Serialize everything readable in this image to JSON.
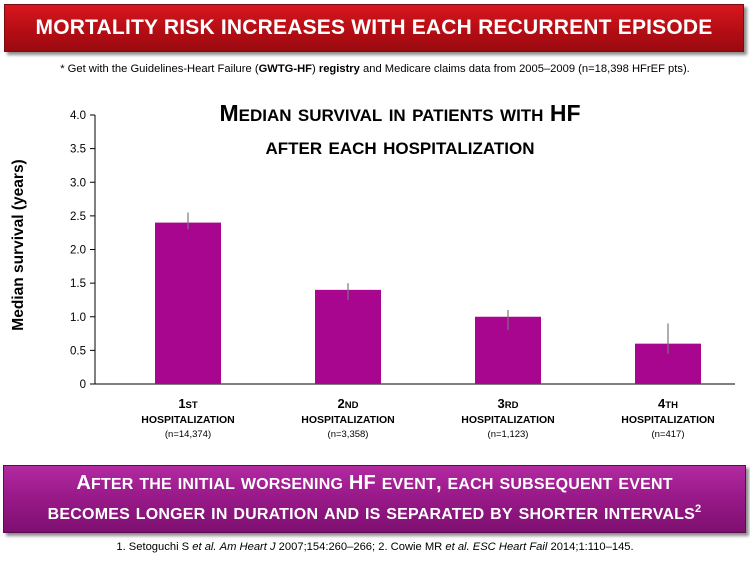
{
  "title": "MORTALITY RISK INCREASES WITH EACH RECURRENT EPISODE",
  "source_note": {
    "pre": "* Get with the Guidelines-Heart Failure (",
    "bold1": "GWTG-HF",
    "mid": ") ",
    "bold2": "registry",
    "post": " and Medicare claims data from 2005–2009 (n=18,398 HFrEF pts)."
  },
  "colors": {
    "bar": "#a8068f",
    "title_banner": "#c4111a",
    "bottom_banner": "#9a1a8a"
  },
  "chart_data": {
    "type": "bar",
    "title": [
      "Median survival in patients with HF",
      "after each hospitalization"
    ],
    "ylabel": "Median survival (years)",
    "xlabel": "",
    "ylim": [
      0,
      4.0
    ],
    "yticks": [
      "4.0",
      "3.5",
      "3.0",
      "2.5",
      "2.0",
      "1.5",
      "1.0",
      "0.5",
      "0"
    ],
    "grid": false,
    "categories": [
      {
        "ordinal_num": "1",
        "ordinal_suffix": "ST",
        "label": "HOSPITALIZATION",
        "n": "(n=14,374)"
      },
      {
        "ordinal_num": "2",
        "ordinal_suffix": "ND",
        "label": "HOSPITALIZATION",
        "n": "(n=3,358)"
      },
      {
        "ordinal_num": "3",
        "ordinal_suffix": "RD",
        "label": "HOSPITALIZATION",
        "n": "(n=1,123)"
      },
      {
        "ordinal_num": "4",
        "ordinal_suffix": "TH",
        "label": "HOSPITALIZATION",
        "n": "(n=417)"
      }
    ],
    "values": [
      2.4,
      1.4,
      1.0,
      0.6
    ],
    "error_low": [
      2.3,
      1.25,
      0.8,
      0.45
    ],
    "error_high": [
      2.55,
      1.5,
      1.1,
      0.9
    ]
  },
  "bottom_banner": {
    "line1": "After the initial worsening HF event, each subsequent event",
    "line2": "becomes longer in duration and is separated by shorter intervals",
    "line2_sup": "2"
  },
  "references": "1. Setoguchi S et al. Am Heart J 2007;154:260–266; 2. Cowie MR et al. ESC Heart Fail 2014;1:110–145."
}
